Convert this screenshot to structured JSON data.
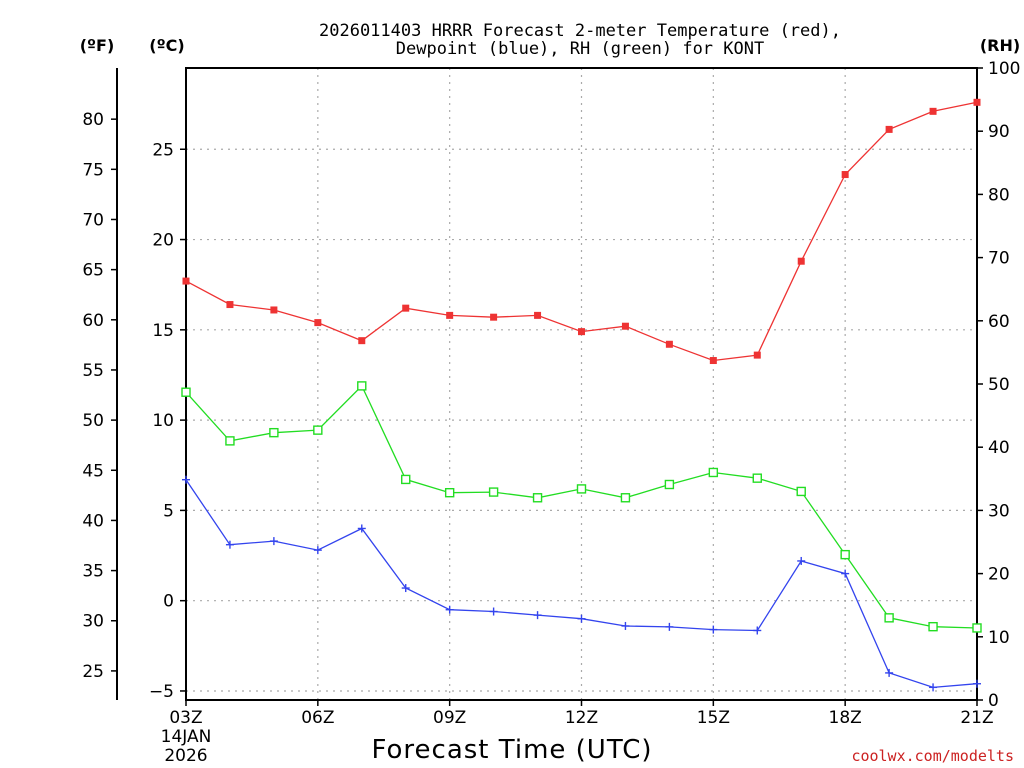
{
  "chart_data": {
    "type": "line",
    "title_line1": "2026011403 HRRR Forecast 2-meter Temperature (red),",
    "title_line2": "Dewpoint (blue), RH (green) for KONT",
    "xlabel": "Forecast Time (UTC)",
    "x_date_line1": "14JAN",
    "x_date_line2": "2026",
    "units": {
      "fahrenheit": "(ºF)",
      "celsius": "(ºC)",
      "rh": "(RH)"
    },
    "x_ticks": [
      "03Z",
      "06Z",
      "09Z",
      "12Z",
      "15Z",
      "18Z",
      "21Z"
    ],
    "x_hours": [
      3,
      4,
      5,
      6,
      7,
      8,
      9,
      10,
      11,
      12,
      13,
      14,
      15,
      16,
      17,
      18,
      19,
      20,
      21
    ],
    "celsius_ticks": [
      "-5",
      "0",
      "5",
      "10",
      "15",
      "20",
      "25"
    ],
    "fahrenheit_ticks": [
      "25",
      "30",
      "35",
      "40",
      "45",
      "50",
      "55",
      "60",
      "65",
      "70",
      "75",
      "80"
    ],
    "rh_ticks": [
      "0",
      "10",
      "20",
      "30",
      "40",
      "50",
      "60",
      "70",
      "80",
      "90",
      "100"
    ],
    "ylim_celsius": [
      -5.5,
      29.5
    ],
    "ylim_rh": [
      0,
      100
    ],
    "series": [
      {
        "name": "Temperature",
        "axis": "celsius",
        "color": "#ee3333",
        "marker": "filled-square",
        "values": [
          17.7,
          16.4,
          16.1,
          15.4,
          14.4,
          16.2,
          15.8,
          15.7,
          15.8,
          14.9,
          15.2,
          14.2,
          13.3,
          13.6,
          18.8,
          23.6,
          26.1,
          27.1,
          27.6
        ]
      },
      {
        "name": "Dewpoint",
        "axis": "celsius",
        "color": "#3344ee",
        "marker": "plus",
        "values": [
          6.7,
          3.1,
          3.3,
          2.8,
          4.0,
          0.7,
          -0.5,
          -0.6,
          -0.8,
          -1.0,
          -1.4,
          -1.45,
          -1.6,
          -1.65,
          2.2,
          1.5,
          -4.0,
          -4.8,
          -4.6
        ]
      },
      {
        "name": "RH",
        "axis": "rh",
        "color": "#22dd22",
        "marker": "open-square",
        "values": [
          48.7,
          41.0,
          42.3,
          42.7,
          49.7,
          34.9,
          32.8,
          32.9,
          32.0,
          33.4,
          32.0,
          34.1,
          36.0,
          35.1,
          33.0,
          23.0,
          13.0,
          11.6,
          11.4
        ]
      }
    ]
  },
  "credit": "coolwx.com/modelts",
  "colors": {
    "credit": "#cc2222",
    "axis": "#000000",
    "grid": "#aaaaaa"
  }
}
